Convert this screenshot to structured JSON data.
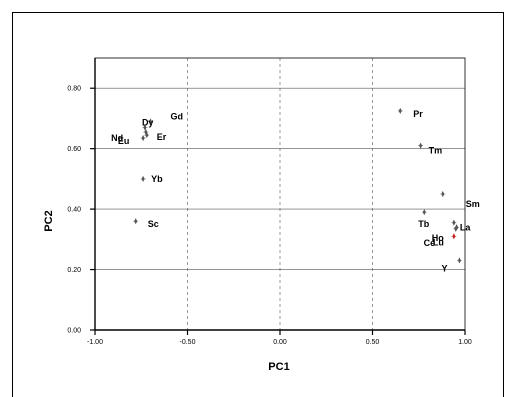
{
  "chart_data": {
    "type": "scatter",
    "xlabel": "PC1",
    "ylabel": "PC2",
    "xlim": [
      -1.0,
      1.0
    ],
    "ylim": [
      0.0,
      0.9
    ],
    "x_ticks": [
      -1.0,
      -0.5,
      0.0,
      0.5,
      1.0
    ],
    "x_tick_labels": [
      "-1.00",
      "-0.50",
      "0.00",
      "0.50",
      "1.00"
    ],
    "y_ticks": [
      0.0,
      0.2,
      0.4,
      0.6,
      0.8
    ],
    "y_tick_labels": [
      "0.00",
      "0.20",
      "0.40",
      "0.60",
      "0.80"
    ],
    "grid": {
      "horizontal": "solid",
      "vertical": "dashed"
    },
    "marker_color": "#555555",
    "highlight_color": "#cc2222",
    "points": [
      {
        "label": "Nd",
        "x": -0.74,
        "y": 0.635
      },
      {
        "label": "Dy",
        "x": -0.73,
        "y": 0.67
      },
      {
        "label": "Gd",
        "x": -0.7,
        "y": 0.69
      },
      {
        "label": "Er",
        "x": -0.72,
        "y": 0.645
      },
      {
        "label": "Eu",
        "x": -0.725,
        "y": 0.655
      },
      {
        "label": "Yb",
        "x": -0.74,
        "y": 0.5
      },
      {
        "label": "Sc",
        "x": -0.78,
        "y": 0.36
      },
      {
        "label": "Pr",
        "x": 0.65,
        "y": 0.725
      },
      {
        "label": "Tm",
        "x": 0.76,
        "y": 0.61
      },
      {
        "label": "Sm",
        "x": 0.88,
        "y": 0.45
      },
      {
        "label": "La",
        "x": 0.94,
        "y": 0.355
      },
      {
        "label": "Tb",
        "x": 0.78,
        "y": 0.39
      },
      {
        "label": "Ho",
        "x": 0.95,
        "y": 0.335
      },
      {
        "label": "Lu",
        "x": 0.94,
        "y": 0.31,
        "highlight": true
      },
      {
        "label": "Ce",
        "x": 0.955,
        "y": 0.34
      },
      {
        "label": "Y",
        "x": 0.97,
        "y": 0.23
      }
    ]
  }
}
